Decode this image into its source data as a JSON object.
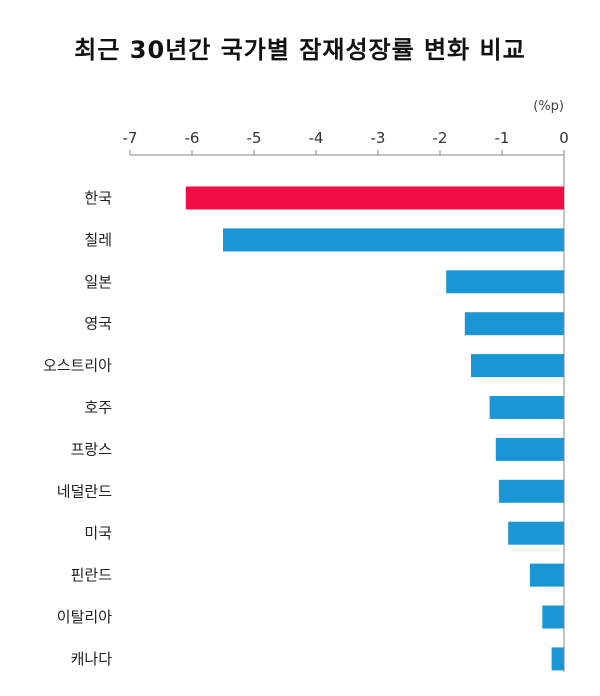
{
  "chart_data": {
    "type": "bar",
    "orientation": "horizontal",
    "title": "최근 30년간 국가별 잠재성장률 변화 비교",
    "unit": "(%p)",
    "xlim": [
      -7,
      0
    ],
    "x_ticks": [
      "-7",
      "-6",
      "-5",
      "-4",
      "-3",
      "-2",
      "-1",
      "0"
    ],
    "categories": [
      "한국",
      "칠레",
      "일본",
      "영국",
      "오스트리아",
      "호주",
      "프랑스",
      "네덜란드",
      "미국",
      "핀란드",
      "이탈리아",
      "캐나다"
    ],
    "values": [
      -6.1,
      -5.5,
      -1.9,
      -1.6,
      -1.5,
      -1.2,
      -1.1,
      -1.05,
      -0.9,
      -0.55,
      -0.35,
      -0.2
    ],
    "highlight_index": 0,
    "colors": {
      "highlight": "#f20d47",
      "default": "#1a96d4",
      "axis": "#888888"
    },
    "legend": "none",
    "grid": false
  }
}
